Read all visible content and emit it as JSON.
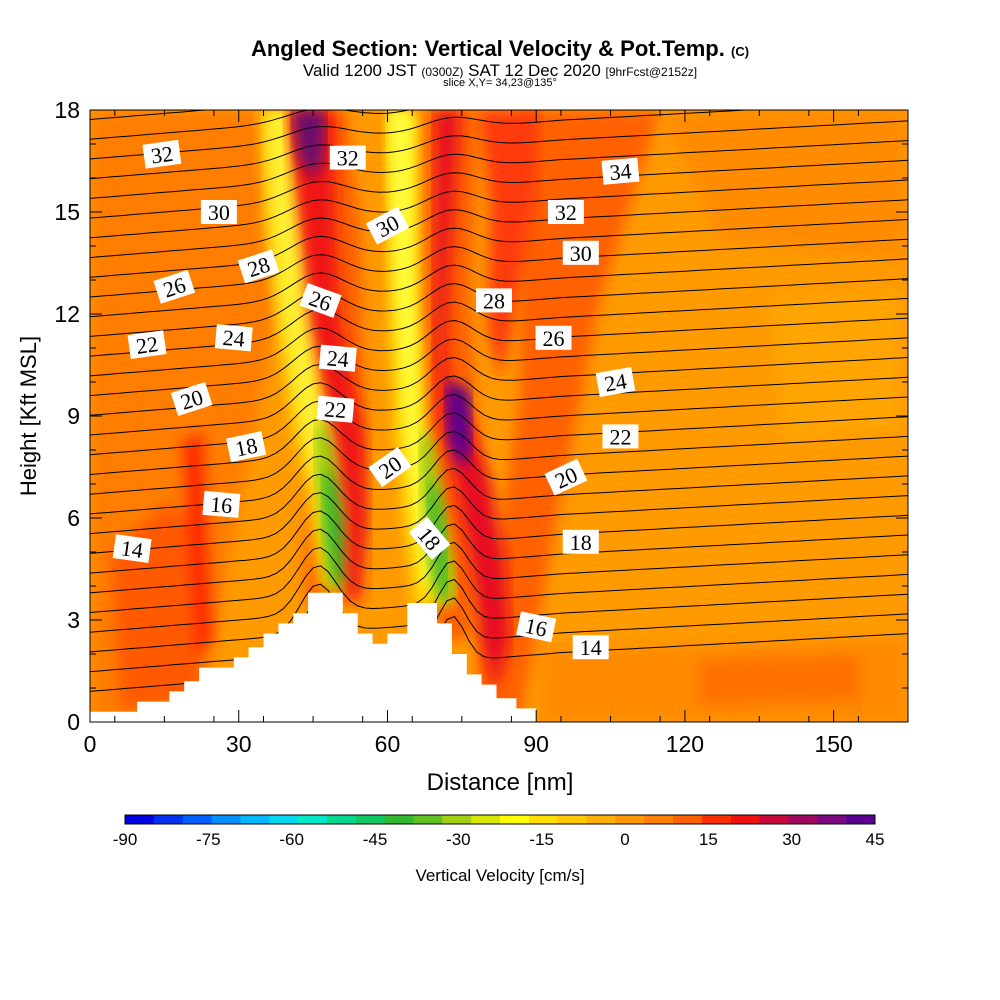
{
  "header": {
    "title_main": "Angled Section: Vertical Velocity & Pot.Temp.",
    "title_unit": "(C)",
    "valid_label": "Valid 1200 JST",
    "valid_utc": "(0300Z)",
    "valid_date": "SAT 12 Dec 2020",
    "forecast": "[9hrFcst@2152z]",
    "slice": "slice X,Y= 34,23@135°"
  },
  "chart_data": {
    "type": "contour",
    "xlabel": "Distance [nm]",
    "ylabel": "Height [Kft MSL]",
    "xlim": [
      0,
      165
    ],
    "ylim": [
      0,
      18
    ],
    "x_ticks": [
      0,
      30,
      60,
      90,
      120,
      150
    ],
    "y_ticks": [
      0,
      3,
      6,
      9,
      12,
      15,
      18
    ],
    "colorbar": {
      "label": "Vertical Velocity [cm/s]",
      "min": -90,
      "max": 45,
      "step": 5,
      "ticks": [
        -90,
        -75,
        -60,
        -45,
        -30,
        -15,
        0,
        15,
        30,
        45
      ],
      "colors": [
        "#0000e0",
        "#0030f0",
        "#0060ff",
        "#0090ff",
        "#00b8ff",
        "#00d8f0",
        "#00e8c8",
        "#00d890",
        "#10c860",
        "#30b830",
        "#60c020",
        "#a0d010",
        "#d8e800",
        "#ffff00",
        "#ffe000",
        "#ffc800",
        "#ffb000",
        "#ff9800",
        "#ff8000",
        "#ff6000",
        "#ff3000",
        "#f01010",
        "#c80838",
        "#a00860",
        "#7a0880",
        "#5a0090"
      ]
    },
    "terrain_profile": [
      [
        0,
        0.3
      ],
      [
        9.5,
        0.3
      ],
      [
        9.5,
        0.6
      ],
      [
        16,
        0.6
      ],
      [
        16,
        0.9
      ],
      [
        19,
        0.9
      ],
      [
        19,
        1.2
      ],
      [
        22,
        1.2
      ],
      [
        22,
        1.6
      ],
      [
        29,
        1.6
      ],
      [
        29,
        1.9
      ],
      [
        32,
        1.9
      ],
      [
        32,
        2.2
      ],
      [
        35,
        2.2
      ],
      [
        35,
        2.6
      ],
      [
        38,
        2.6
      ],
      [
        38,
        2.9
      ],
      [
        41,
        2.9
      ],
      [
        41,
        3.2
      ],
      [
        44,
        3.2
      ],
      [
        44,
        3.8
      ],
      [
        51,
        3.8
      ],
      [
        51,
        3.2
      ],
      [
        54,
        3.2
      ],
      [
        54,
        2.6
      ],
      [
        57,
        2.6
      ],
      [
        57,
        2.3
      ],
      [
        60,
        2.3
      ],
      [
        60,
        2.6
      ],
      [
        64,
        2.6
      ],
      [
        64,
        3.5
      ],
      [
        70,
        3.5
      ],
      [
        70,
        2.9
      ],
      [
        73,
        2.9
      ],
      [
        73,
        2.0
      ],
      [
        76,
        2.0
      ],
      [
        76,
        1.4
      ],
      [
        79,
        1.4
      ],
      [
        79,
        1.1
      ],
      [
        82,
        1.1
      ],
      [
        82,
        0.7
      ],
      [
        86,
        0.7
      ],
      [
        86,
        0.4
      ],
      [
        90,
        0.4
      ],
      [
        90,
        0
      ]
    ],
    "contour_labels": [
      {
        "text": "32",
        "x": 14.5,
        "y": 16.7,
        "angle": 8
      },
      {
        "text": "30",
        "x": 26,
        "y": 15.0,
        "angle": 0
      },
      {
        "text": "28",
        "x": 34,
        "y": 13.4,
        "angle": 18
      },
      {
        "text": "26",
        "x": 17,
        "y": 12.8,
        "angle": 18
      },
      {
        "text": "24",
        "x": 29,
        "y": 11.3,
        "angle": -5
      },
      {
        "text": "22",
        "x": 11.5,
        "y": 11.1,
        "angle": 8
      },
      {
        "text": "20",
        "x": 20.5,
        "y": 9.5,
        "angle": 18
      },
      {
        "text": "18",
        "x": 31.5,
        "y": 8.1,
        "angle": 12
      },
      {
        "text": "16",
        "x": 26.5,
        "y": 6.4,
        "angle": -5
      },
      {
        "text": "14",
        "x": 8.5,
        "y": 5.1,
        "angle": -8
      },
      {
        "text": "32",
        "x": 52,
        "y": 16.6,
        "angle": 0
      },
      {
        "text": "30",
        "x": 60,
        "y": 14.6,
        "angle": 28
      },
      {
        "text": "26",
        "x": 46.5,
        "y": 12.4,
        "angle": -20
      },
      {
        "text": "24",
        "x": 50,
        "y": 10.7,
        "angle": -5
      },
      {
        "text": "22",
        "x": 49.5,
        "y": 9.2,
        "angle": -5
      },
      {
        "text": "20",
        "x": 60.5,
        "y": 7.5,
        "angle": 35
      },
      {
        "text": "18",
        "x": 68.5,
        "y": 5.4,
        "angle": -50
      },
      {
        "text": "34",
        "x": 107,
        "y": 16.2,
        "angle": 5
      },
      {
        "text": "32",
        "x": 96,
        "y": 15.0,
        "angle": 0
      },
      {
        "text": "30",
        "x": 99,
        "y": 13.8,
        "angle": 0
      },
      {
        "text": "28",
        "x": 81.5,
        "y": 12.4,
        "angle": 0
      },
      {
        "text": "26",
        "x": 93.5,
        "y": 11.3,
        "angle": 0
      },
      {
        "text": "24",
        "x": 106,
        "y": 10.0,
        "angle": 10
      },
      {
        "text": "22",
        "x": 107,
        "y": 8.4,
        "angle": 0
      },
      {
        "text": "20",
        "x": 96,
        "y": 7.2,
        "angle": 25
      },
      {
        "text": "18",
        "x": 99,
        "y": 5.3,
        "angle": 0
      },
      {
        "text": "16",
        "x": 90,
        "y": 2.8,
        "angle": -12
      },
      {
        "text": "14",
        "x": 101,
        "y": 2.2,
        "angle": 0
      }
    ]
  }
}
